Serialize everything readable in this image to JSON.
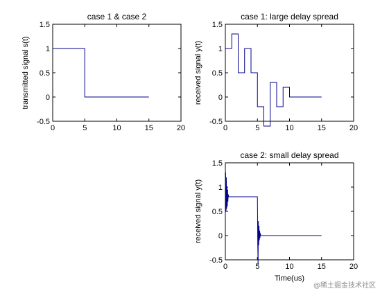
{
  "watermark": "@稀土掘金技术社区",
  "chart_data": [
    {
      "id": "tx",
      "type": "line",
      "title": "case 1 & case 2",
      "xlabel": "",
      "ylabel": "transmitted signal s(t)",
      "xlim": [
        0,
        20
      ],
      "ylim": [
        -0.5,
        1.5
      ],
      "xticks": [
        "0",
        "5",
        "10",
        "15",
        "20"
      ],
      "yticks": [
        "-0.5",
        "0",
        "0.5",
        "1",
        "1.5"
      ],
      "line_color": "#00008b",
      "series": [
        {
          "x": [
            0,
            5,
            5,
            15
          ],
          "y": [
            1,
            1,
            0,
            0
          ]
        }
      ]
    },
    {
      "id": "large",
      "type": "line",
      "title": "case 1: large delay spread",
      "xlabel": "",
      "ylabel": "received signal y(t)",
      "xlim": [
        0,
        20
      ],
      "ylim": [
        -0.5,
        1.5
      ],
      "xticks": [
        "0",
        "5",
        "10",
        "15",
        "20"
      ],
      "yticks": [
        "-0.5",
        "0",
        "0.5",
        "1",
        "1.5"
      ],
      "line_color": "#00008b",
      "series": [
        {
          "x": [
            0,
            1,
            1,
            2,
            2,
            3,
            3,
            4,
            4,
            5,
            5,
            6,
            6,
            7,
            7,
            8,
            8,
            9,
            9,
            10,
            10,
            15
          ],
          "y": [
            1,
            1,
            1.3,
            1.3,
            0.5,
            0.5,
            1,
            1,
            0.5,
            0.5,
            -0.2,
            -0.2,
            -0.6,
            -0.6,
            0.3,
            0.3,
            -0.2,
            -0.2,
            0.2,
            0.2,
            0,
            0
          ]
        }
      ]
    },
    {
      "id": "small",
      "type": "line",
      "title": "case 2: small delay spread",
      "xlabel": "Time(us)",
      "ylabel": "received signal y(t)",
      "xlim": [
        0,
        20
      ],
      "ylim": [
        -0.5,
        1.5
      ],
      "xticks": [
        "0",
        "5",
        "10",
        "15",
        "20"
      ],
      "yticks": [
        "-0.5",
        "0",
        "0.5",
        "1",
        "1.5"
      ],
      "line_color": "#00008b",
      "series": [
        {
          "x": [
            0,
            0.05,
            0.1,
            0.15,
            0.2,
            0.25,
            0.3,
            0.35,
            0.4,
            0.45,
            0.5,
            5,
            5.05,
            5.1,
            5.15,
            5.2,
            5.25,
            5.3,
            5.35,
            5.4,
            5.45,
            5.5,
            15
          ],
          "y": [
            1,
            1.3,
            0.5,
            1.2,
            0.55,
            1.0,
            0.6,
            0.95,
            0.7,
            0.85,
            0.8,
            0.8,
            -0.2,
            -0.6,
            0.3,
            -0.2,
            0.2,
            -0.1,
            0.1,
            -0.05,
            0.05,
            0,
            0
          ]
        }
      ]
    }
  ]
}
